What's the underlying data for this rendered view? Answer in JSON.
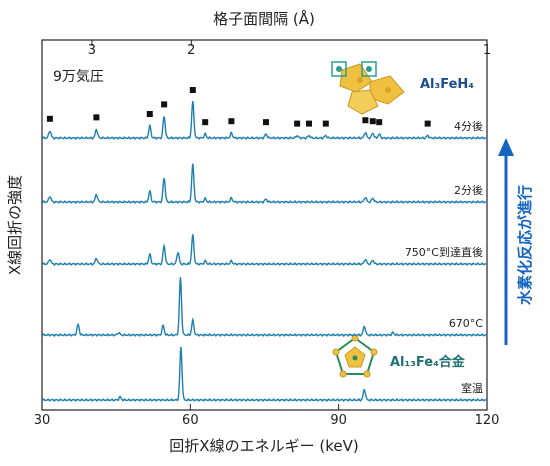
{
  "chart_data": {
    "type": "line",
    "title": "",
    "xlabel": "回折X線のエネルギー (keV)",
    "ylabel": "X線回折の強度",
    "top_xlabel": "格子面間隔 (Å)",
    "xlim": [
      30,
      120
    ],
    "x_ticks": [
      30,
      60,
      90,
      120
    ],
    "top_ticks": [
      {
        "label": "3",
        "x": 40.1
      },
      {
        "label": "2",
        "x": 60.2
      },
      {
        "label": "1",
        "x": 120.0
      }
    ],
    "pressure_label": "9万気圧",
    "arrow_label": "水素化反応が進行",
    "phase_top_label": "Al₃FeH₄",
    "phase_bottom_label": "Al₁₃Fe₄合金",
    "marker_positions": [
      31.6,
      41.0,
      51.8,
      54.7,
      60.5,
      63.0,
      68.3,
      75.3,
      81.6,
      84.0,
      87.4,
      95.4,
      96.9,
      98.2,
      108.0
    ],
    "series": [
      {
        "name": "4分後",
        "color": "#1e7fb0",
        "peaks": [
          [
            31.6,
            0.15
          ],
          [
            41.0,
            0.18
          ],
          [
            51.8,
            0.25
          ],
          [
            54.7,
            0.45
          ],
          [
            60.5,
            0.75
          ],
          [
            63.0,
            0.08
          ],
          [
            68.3,
            0.1
          ],
          [
            75.3,
            0.08
          ],
          [
            81.6,
            0.05
          ],
          [
            84.0,
            0.05
          ],
          [
            87.4,
            0.05
          ],
          [
            95.4,
            0.12
          ],
          [
            96.9,
            0.1
          ],
          [
            98.2,
            0.08
          ],
          [
            108.0,
            0.05
          ]
        ]
      },
      {
        "name": "2分後",
        "color": "#1e7fb0",
        "peaks": [
          [
            31.6,
            0.12
          ],
          [
            41.0,
            0.16
          ],
          [
            51.8,
            0.22
          ],
          [
            54.7,
            0.5
          ],
          [
            60.5,
            0.78
          ],
          [
            63.0,
            0.07
          ],
          [
            68.3,
            0.08
          ],
          [
            75.3,
            0.06
          ],
          [
            95.4,
            0.1
          ],
          [
            96.9,
            0.08
          ]
        ]
      },
      {
        "name": "750°C到達直後",
        "color": "#1e7fb0",
        "peaks": [
          [
            31.6,
            0.1
          ],
          [
            41.0,
            0.12
          ],
          [
            51.8,
            0.2
          ],
          [
            54.7,
            0.38
          ],
          [
            57.5,
            0.25
          ],
          [
            60.5,
            0.6
          ],
          [
            63.0,
            0.06
          ],
          [
            68.3,
            0.06
          ],
          [
            95.4,
            0.1
          ],
          [
            96.9,
            0.08
          ]
        ]
      },
      {
        "name": "670°C",
        "color": "#1e7fb0",
        "peaks": [
          [
            37.3,
            0.22
          ],
          [
            45.5,
            0.05
          ],
          [
            54.5,
            0.2
          ],
          [
            58.0,
            1.2
          ],
          [
            60.5,
            0.3
          ],
          [
            95.2,
            0.18
          ],
          [
            101.0,
            0.05
          ]
        ]
      },
      {
        "name": "室温",
        "color": "#1e7fb0",
        "peaks": [
          [
            45.8,
            0.06
          ],
          [
            58.1,
            1.1
          ],
          [
            95.2,
            0.22
          ]
        ]
      }
    ]
  },
  "colors": {
    "trace": "#1e7fb0",
    "arrow": "#1565c0",
    "marker": "#111111"
  }
}
